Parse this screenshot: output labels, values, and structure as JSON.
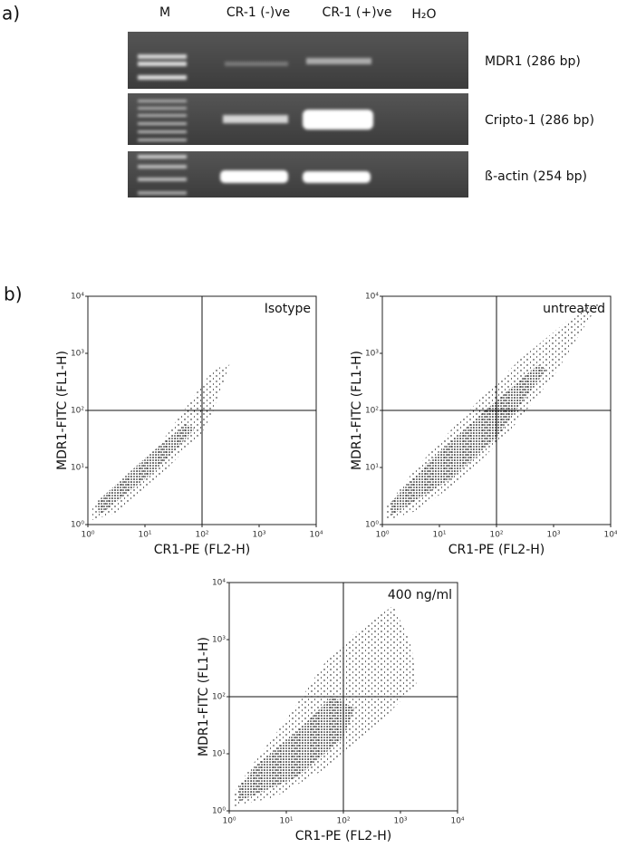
{
  "panel_a": {
    "label": "a)",
    "lanes": [
      "M",
      "CR-1 (-)ve",
      "CR-1 (+)ve",
      "H₂O"
    ],
    "bands": [
      "MDR1 (286 bp)",
      "Cripto-1 (286 bp)",
      "ß-actin (254 bp)"
    ]
  },
  "panel_b_label": "b)",
  "chart_data": [
    {
      "type": "scatter",
      "annotation": "Isotype",
      "x_label": "CR1-PE (FL2-H)",
      "y_label": "MDR1-FITC (FL1-H)",
      "log_scale": true,
      "xlim": [
        1,
        10000
      ],
      "ylim": [
        1,
        10000
      ],
      "xticks": [
        {
          "value": 1,
          "label": "10⁰"
        },
        {
          "value": 10,
          "label": "10¹"
        },
        {
          "value": 100,
          "label": "10²"
        },
        {
          "value": 1000,
          "label": "10³"
        },
        {
          "value": 10000,
          "label": "10⁴"
        }
      ],
      "yticks": [
        {
          "value": 1,
          "label": "10⁰"
        },
        {
          "value": 10,
          "label": "10¹"
        },
        {
          "value": 100,
          "label": "10²"
        },
        {
          "value": 1000,
          "label": "10³"
        },
        {
          "value": 10000,
          "label": "10⁴"
        }
      ],
      "quadrant_x": 100,
      "quadrant_y": 100
    },
    {
      "type": "scatter",
      "annotation": "untreated",
      "x_label": "CR1-PE (FL2-H)",
      "y_label": "MDR1-FITC (FL1-H)",
      "log_scale": true,
      "xlim": [
        1,
        10000
      ],
      "ylim": [
        1,
        10000
      ],
      "xticks": [
        {
          "value": 1,
          "label": "10⁰"
        },
        {
          "value": 10,
          "label": "10¹"
        },
        {
          "value": 100,
          "label": "10²"
        },
        {
          "value": 1000,
          "label": "10³"
        },
        {
          "value": 10000,
          "label": "10⁴"
        }
      ],
      "yticks": [
        {
          "value": 1,
          "label": "10⁰"
        },
        {
          "value": 10,
          "label": "10¹"
        },
        {
          "value": 100,
          "label": "10²"
        },
        {
          "value": 1000,
          "label": "10³"
        },
        {
          "value": 10000,
          "label": "10⁴"
        }
      ],
      "quadrant_x": 100,
      "quadrant_y": 100
    },
    {
      "type": "scatter",
      "annotation": "400 ng/ml",
      "x_label": "CR1-PE (FL2-H)",
      "y_label": "MDR1-FITC (FL1-H)",
      "log_scale": true,
      "xlim": [
        1,
        10000
      ],
      "ylim": [
        1,
        10000
      ],
      "xticks": [
        {
          "value": 1,
          "label": "10⁰"
        },
        {
          "value": 10,
          "label": "10¹"
        },
        {
          "value": 100,
          "label": "10²"
        },
        {
          "value": 1000,
          "label": "10³"
        },
        {
          "value": 10000,
          "label": "10⁴"
        }
      ],
      "yticks": [
        {
          "value": 1,
          "label": "10⁰"
        },
        {
          "value": 10,
          "label": "10¹"
        },
        {
          "value": 100,
          "label": "10²"
        },
        {
          "value": 1000,
          "label": "10³"
        },
        {
          "value": 10000,
          "label": "10⁴"
        }
      ],
      "quadrant_x": 100,
      "quadrant_y": 100
    }
  ]
}
